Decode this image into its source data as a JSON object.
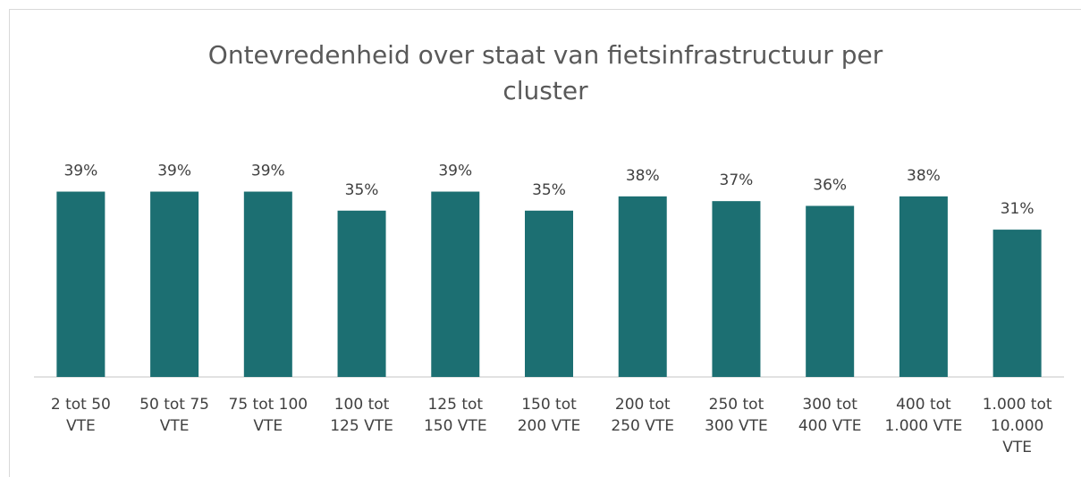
{
  "chart_data": {
    "type": "bar",
    "title": "Ontevredenheid over staat van fietsinfrastructuur per\ncluster",
    "categories": [
      "2 tot 50\nVTE",
      "50 tot 75\nVTE",
      "75 tot 100\nVTE",
      "100 tot\n125 VTE",
      "125 tot\n150 VTE",
      "150 tot\n200 VTE",
      "200 tot\n250 VTE",
      "250 tot\n300 VTE",
      "300 tot\n400 VTE",
      "400 tot\n1.000 VTE",
      "1.000 tot\n10.000\nVTE"
    ],
    "values": [
      39,
      39,
      39,
      35,
      39,
      35,
      38,
      37,
      36,
      38,
      31
    ],
    "value_labels": [
      "39%",
      "39%",
      "39%",
      "35%",
      "39%",
      "35%",
      "38%",
      "37%",
      "36%",
      "38%",
      "31%"
    ],
    "color": "#1c6f72"
  }
}
